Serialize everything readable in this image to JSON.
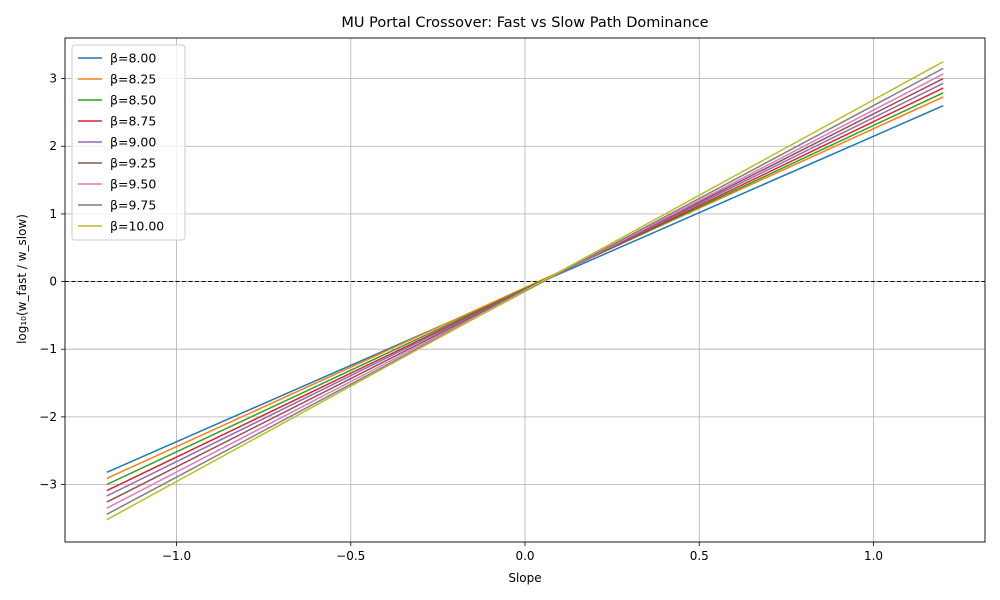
{
  "chart_data": {
    "type": "line",
    "title": "MU Portal Crossover: Fast vs Slow Path Dominance",
    "xlabel": "Slope",
    "ylabel": "log₁₀(w_fast / w_slow)",
    "xlim": [
      -1.32,
      1.32
    ],
    "ylim": [
      -3.85,
      3.6
    ],
    "xticks": [
      -1.0,
      -0.5,
      0.0,
      0.5,
      1.0
    ],
    "xtick_labels": [
      "−1.0",
      "−0.5",
      "0.0",
      "0.5",
      "1.0"
    ],
    "yticks": [
      -3,
      -2,
      -1,
      0,
      1,
      2,
      3
    ],
    "ytick_labels": [
      "−3",
      "−2",
      "−1",
      "0",
      "1",
      "2",
      "3"
    ],
    "grid": true,
    "legend_position": "top-left",
    "reference_line": {
      "y": 0,
      "style": "dashed",
      "color": "#000000"
    },
    "x": [
      -1.2,
      1.2
    ],
    "series": [
      {
        "name": "β=8.00",
        "color": "#1f77b4",
        "values": [
          -2.82,
          2.6
        ]
      },
      {
        "name": "β=8.25",
        "color": "#ff7f0e",
        "values": [
          -2.91,
          2.73
        ]
      },
      {
        "name": "β=8.50",
        "color": "#2ca02c",
        "values": [
          -3.0,
          2.79
        ]
      },
      {
        "name": "β=8.75",
        "color": "#d62728",
        "values": [
          -3.09,
          2.86
        ]
      },
      {
        "name": "β=9.00",
        "color": "#9467bd",
        "values": [
          -3.17,
          2.93
        ]
      },
      {
        "name": "β=9.25",
        "color": "#8c564b",
        "values": [
          -3.26,
          3.0
        ]
      },
      {
        "name": "β=9.50",
        "color": "#e377c2",
        "values": [
          -3.35,
          3.07
        ]
      },
      {
        "name": "β=9.75",
        "color": "#7f7f7f",
        "values": [
          -3.44,
          3.15
        ]
      },
      {
        "name": "β=10.00",
        "color": "#bcbd22",
        "values": [
          -3.52,
          3.25
        ]
      }
    ]
  }
}
